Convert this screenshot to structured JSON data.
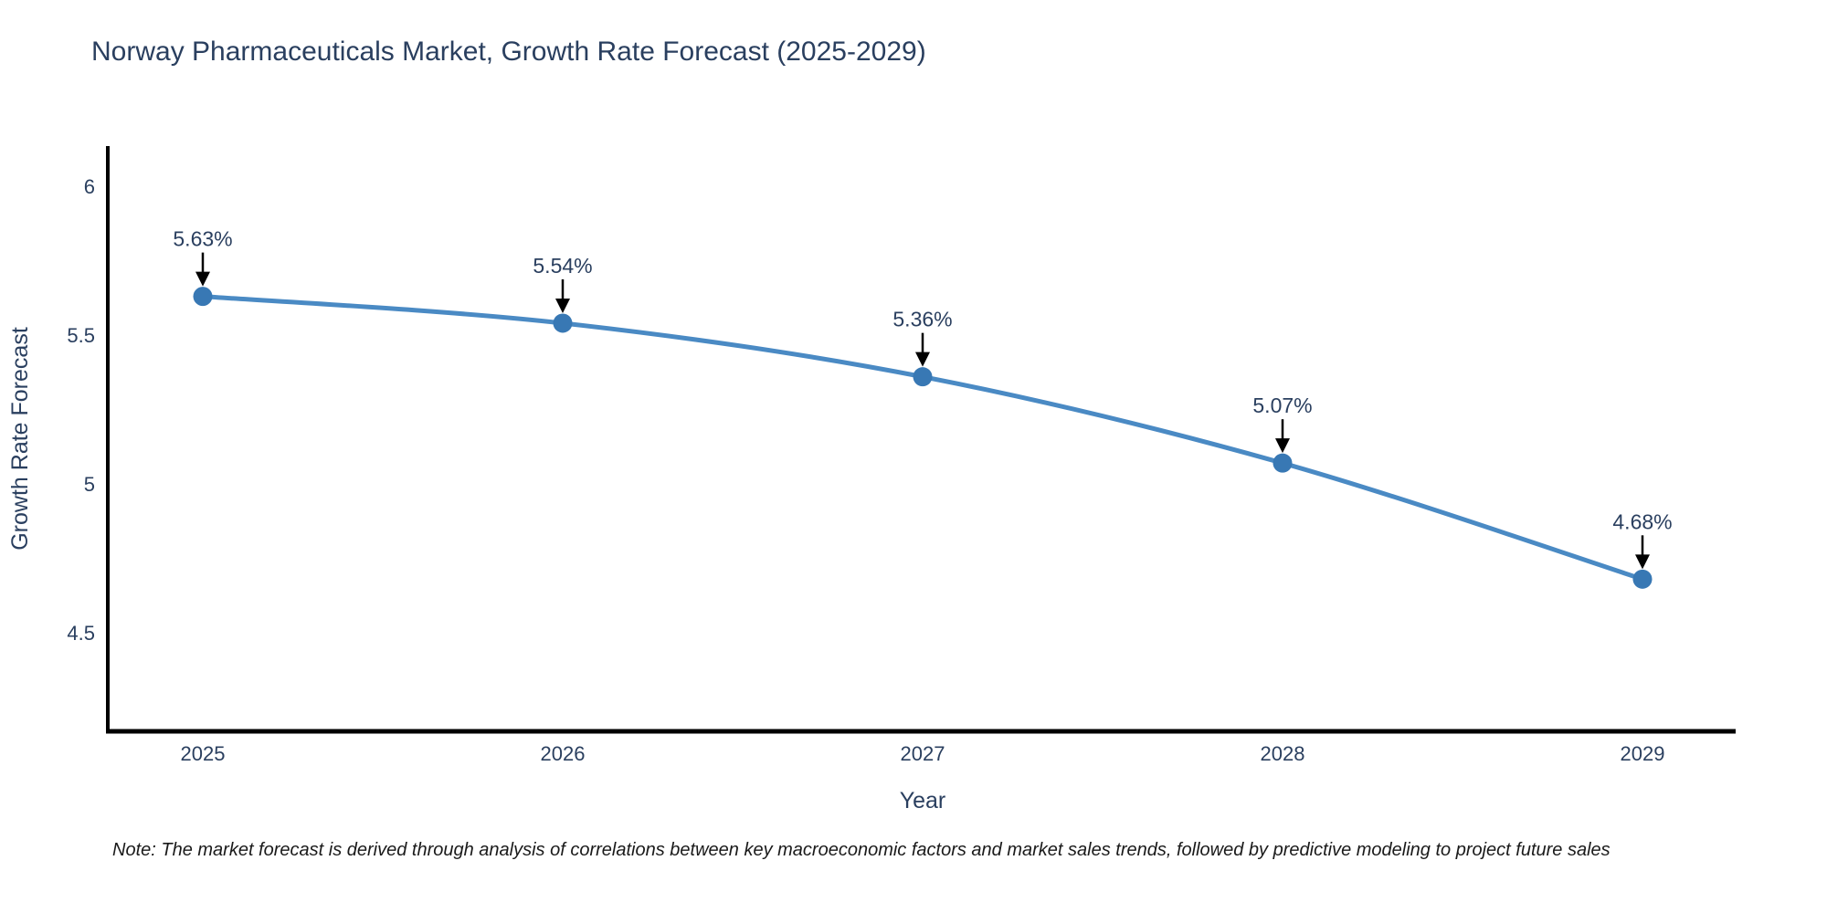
{
  "title": "Norway Pharmaceuticals Market, Growth Rate Forecast (2025-2029)",
  "note": "Note: The market forecast is derived through analysis of correlations between key macroeconomic factors and market sales trends, followed by predictive modeling to project future sales",
  "colors": {
    "title_text": "#2a3f5f",
    "axis_text": "#2a3f5f",
    "axis_line": "#000000",
    "line": "#4a8ac4",
    "marker": "#3878b4",
    "annotation_arrow": "#000000",
    "note_text": "#1a1a1a",
    "background": "#ffffff"
  },
  "chart_data": {
    "type": "line",
    "title": "Norway Pharmaceuticals Market, Growth Rate Forecast (2025-2029)",
    "xlabel": "Year",
    "ylabel": "Growth Rate Forecast",
    "x": [
      2025,
      2026,
      2027,
      2028,
      2029
    ],
    "values": [
      5.63,
      5.54,
      5.36,
      5.07,
      4.68
    ],
    "labels": [
      "5.63%",
      "5.54%",
      "5.36%",
      "5.07%",
      "4.68%"
    ],
    "xticklabels": [
      "2025",
      "2026",
      "2027",
      "2028",
      "2029"
    ],
    "yticks": [
      6,
      5.5,
      5,
      4.5
    ],
    "yticklabels": [
      "6",
      "5.5",
      "5",
      "4.5"
    ],
    "xlim": [
      2024.74,
      2029.26
    ],
    "ylim": [
      4.17,
      6.14
    ],
    "grid": false,
    "legend": false,
    "line_shape": "spline",
    "annotations": "value labels with downward arrows pointing at each marker"
  }
}
